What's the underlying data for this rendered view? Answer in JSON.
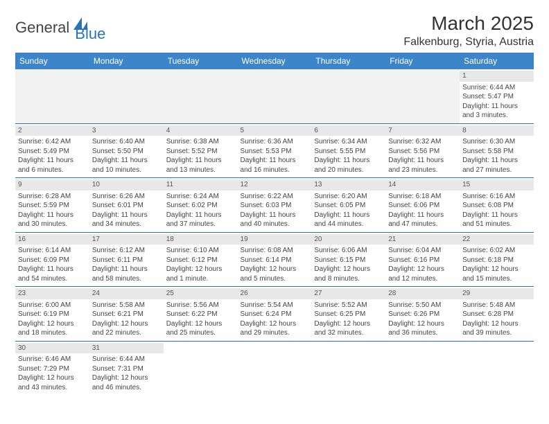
{
  "header": {
    "logo_general": "General",
    "logo_blue": "Blue",
    "month_title": "March 2025",
    "location": "Falkenburg, Styria, Austria"
  },
  "colors": {
    "header_bg": "#3b85c8",
    "header_text": "#ffffff",
    "row_separator": "#2873b8",
    "day_number_bg": "#e8e8e8",
    "empty_cell_bg": "#f2f2f2",
    "body_text": "#444444",
    "logo_gray": "#444444",
    "logo_blue": "#2873b8"
  },
  "dow": [
    "Sunday",
    "Monday",
    "Tuesday",
    "Wednesday",
    "Thursday",
    "Friday",
    "Saturday"
  ],
  "days": {
    "1": {
      "sunrise": "6:44 AM",
      "sunset": "5:47 PM",
      "daylight": "11 hours and 3 minutes."
    },
    "2": {
      "sunrise": "6:42 AM",
      "sunset": "5:49 PM",
      "daylight": "11 hours and 6 minutes."
    },
    "3": {
      "sunrise": "6:40 AM",
      "sunset": "5:50 PM",
      "daylight": "11 hours and 10 minutes."
    },
    "4": {
      "sunrise": "6:38 AM",
      "sunset": "5:52 PM",
      "daylight": "11 hours and 13 minutes."
    },
    "5": {
      "sunrise": "6:36 AM",
      "sunset": "5:53 PM",
      "daylight": "11 hours and 16 minutes."
    },
    "6": {
      "sunrise": "6:34 AM",
      "sunset": "5:55 PM",
      "daylight": "11 hours and 20 minutes."
    },
    "7": {
      "sunrise": "6:32 AM",
      "sunset": "5:56 PM",
      "daylight": "11 hours and 23 minutes."
    },
    "8": {
      "sunrise": "6:30 AM",
      "sunset": "5:58 PM",
      "daylight": "11 hours and 27 minutes."
    },
    "9": {
      "sunrise": "6:28 AM",
      "sunset": "5:59 PM",
      "daylight": "11 hours and 30 minutes."
    },
    "10": {
      "sunrise": "6:26 AM",
      "sunset": "6:01 PM",
      "daylight": "11 hours and 34 minutes."
    },
    "11": {
      "sunrise": "6:24 AM",
      "sunset": "6:02 PM",
      "daylight": "11 hours and 37 minutes."
    },
    "12": {
      "sunrise": "6:22 AM",
      "sunset": "6:03 PM",
      "daylight": "11 hours and 40 minutes."
    },
    "13": {
      "sunrise": "6:20 AM",
      "sunset": "6:05 PM",
      "daylight": "11 hours and 44 minutes."
    },
    "14": {
      "sunrise": "6:18 AM",
      "sunset": "6:06 PM",
      "daylight": "11 hours and 47 minutes."
    },
    "15": {
      "sunrise": "6:16 AM",
      "sunset": "6:08 PM",
      "daylight": "11 hours and 51 minutes."
    },
    "16": {
      "sunrise": "6:14 AM",
      "sunset": "6:09 PM",
      "daylight": "11 hours and 54 minutes."
    },
    "17": {
      "sunrise": "6:12 AM",
      "sunset": "6:11 PM",
      "daylight": "11 hours and 58 minutes."
    },
    "18": {
      "sunrise": "6:10 AM",
      "sunset": "6:12 PM",
      "daylight": "12 hours and 1 minute."
    },
    "19": {
      "sunrise": "6:08 AM",
      "sunset": "6:14 PM",
      "daylight": "12 hours and 5 minutes."
    },
    "20": {
      "sunrise": "6:06 AM",
      "sunset": "6:15 PM",
      "daylight": "12 hours and 8 minutes."
    },
    "21": {
      "sunrise": "6:04 AM",
      "sunset": "6:16 PM",
      "daylight": "12 hours and 12 minutes."
    },
    "22": {
      "sunrise": "6:02 AM",
      "sunset": "6:18 PM",
      "daylight": "12 hours and 15 minutes."
    },
    "23": {
      "sunrise": "6:00 AM",
      "sunset": "6:19 PM",
      "daylight": "12 hours and 18 minutes."
    },
    "24": {
      "sunrise": "5:58 AM",
      "sunset": "6:21 PM",
      "daylight": "12 hours and 22 minutes."
    },
    "25": {
      "sunrise": "5:56 AM",
      "sunset": "6:22 PM",
      "daylight": "12 hours and 25 minutes."
    },
    "26": {
      "sunrise": "5:54 AM",
      "sunset": "6:24 PM",
      "daylight": "12 hours and 29 minutes."
    },
    "27": {
      "sunrise": "5:52 AM",
      "sunset": "6:25 PM",
      "daylight": "12 hours and 32 minutes."
    },
    "28": {
      "sunrise": "5:50 AM",
      "sunset": "6:26 PM",
      "daylight": "12 hours and 36 minutes."
    },
    "29": {
      "sunrise": "5:48 AM",
      "sunset": "6:28 PM",
      "daylight": "12 hours and 39 minutes."
    },
    "30": {
      "sunrise": "6:46 AM",
      "sunset": "7:29 PM",
      "daylight": "12 hours and 43 minutes."
    },
    "31": {
      "sunrise": "6:44 AM",
      "sunset": "7:31 PM",
      "daylight": "12 hours and 46 minutes."
    }
  },
  "labels": {
    "sunrise_prefix": "Sunrise: ",
    "sunset_prefix": "Sunset: ",
    "daylight_prefix": "Daylight: "
  },
  "layout": {
    "first_day_column_index": 6,
    "total_days": 31,
    "columns": 7
  },
  "typography": {
    "month_title_fontsize": 28,
    "location_fontsize": 16,
    "dow_fontsize": 12,
    "cell_fontsize": 10,
    "logo_fontsize": 22
  }
}
